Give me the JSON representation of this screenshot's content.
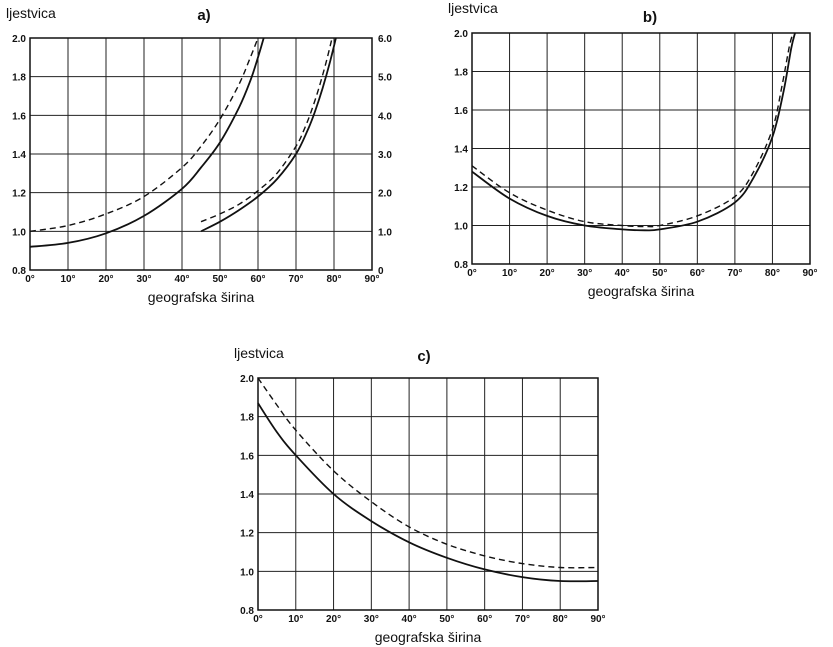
{
  "chart_data": [
    {
      "type": "line",
      "panel_label": "a)",
      "ylabel": "ljestvica",
      "xlabel": "geografska širina",
      "xlim": [
        0,
        90
      ],
      "ylim": [
        0.8,
        2.0
      ],
      "ylim_right": [
        0,
        6.0
      ],
      "grid": true,
      "x_ticks": [
        "0°",
        "10°",
        "20°",
        "30°",
        "40°",
        "50°",
        "60°",
        "70°",
        "80°",
        "90°"
      ],
      "y_ticks": [
        "0.8",
        "1.0",
        "1.2",
        "1.4",
        "1.6",
        "1.8",
        "2.0"
      ],
      "y_ticks_right": [
        "0",
        "1.0",
        "2.0",
        "3.0",
        "4.0",
        "5.0",
        "6.0"
      ],
      "series": [
        {
          "style": "solid",
          "axis": "left",
          "x": [
            0,
            10,
            20,
            30,
            40,
            45,
            50,
            55,
            58,
            60,
            61.5
          ],
          "y": [
            0.92,
            0.94,
            0.99,
            1.08,
            1.22,
            1.33,
            1.46,
            1.64,
            1.78,
            1.9,
            2.0
          ]
        },
        {
          "style": "dashed",
          "axis": "left",
          "x": [
            0,
            10,
            20,
            30,
            40,
            45,
            50,
            55,
            58,
            60
          ],
          "y": [
            1.0,
            1.03,
            1.09,
            1.18,
            1.33,
            1.44,
            1.58,
            1.76,
            1.9,
            2.0
          ]
        },
        {
          "style": "solid",
          "axis": "right",
          "x": [
            45,
            50,
            55,
            60,
            65,
            70,
            73,
            75,
            77,
            79,
            80.5
          ],
          "y": [
            1.0,
            1.25,
            1.55,
            1.9,
            2.35,
            3.0,
            3.6,
            4.1,
            4.7,
            5.4,
            6.0
          ]
        },
        {
          "style": "dashed",
          "axis": "right",
          "x": [
            45,
            50,
            55,
            60,
            65,
            70,
            72,
            74,
            76,
            78,
            79.5
          ],
          "y": [
            1.25,
            1.45,
            1.7,
            2.05,
            2.5,
            3.2,
            3.6,
            4.1,
            4.7,
            5.4,
            6.0
          ]
        }
      ]
    },
    {
      "type": "line",
      "panel_label": "b)",
      "ylabel": "ljestvica",
      "xlabel": "geografska širina",
      "xlim": [
        0,
        90
      ],
      "ylim": [
        0.8,
        2.0
      ],
      "grid": true,
      "x_ticks": [
        "0°",
        "10°",
        "20°",
        "30°",
        "40°",
        "50°",
        "60°",
        "70°",
        "80°",
        "90°"
      ],
      "y_ticks": [
        "0.8",
        "1.0",
        "1.2",
        "1.4",
        "1.6",
        "1.8",
        "2.0"
      ],
      "series": [
        {
          "style": "solid",
          "x": [
            0,
            10,
            20,
            30,
            40,
            46,
            50,
            60,
            70,
            75,
            80,
            83,
            85,
            86
          ],
          "y": [
            1.28,
            1.14,
            1.05,
            1.0,
            0.98,
            0.975,
            0.98,
            1.02,
            1.12,
            1.25,
            1.46,
            1.7,
            1.92,
            2.0
          ]
        },
        {
          "style": "dashed",
          "x": [
            0,
            10,
            20,
            30,
            40,
            46,
            50,
            60,
            70,
            75,
            80,
            82.5,
            84.5,
            85.5
          ],
          "y": [
            1.31,
            1.17,
            1.08,
            1.02,
            1.0,
            0.995,
            1.0,
            1.05,
            1.15,
            1.28,
            1.5,
            1.72,
            1.93,
            2.0
          ]
        }
      ]
    },
    {
      "type": "line",
      "panel_label": "c)",
      "ylabel": "ljestvica",
      "xlabel": "geografska širina",
      "xlim": [
        0,
        90
      ],
      "ylim": [
        0.8,
        2.0
      ],
      "grid": true,
      "x_ticks": [
        "0°",
        "10°",
        "20°",
        "30°",
        "40°",
        "50°",
        "60°",
        "70°",
        "80°",
        "90°"
      ],
      "y_ticks": [
        "0.8",
        "1.0",
        "1.2",
        "1.4",
        "1.6",
        "1.8",
        "2.0"
      ],
      "series": [
        {
          "style": "solid",
          "x": [
            0,
            5,
            10,
            20,
            30,
            40,
            50,
            60,
            70,
            80,
            90
          ],
          "y": [
            1.87,
            1.72,
            1.6,
            1.4,
            1.26,
            1.15,
            1.07,
            1.01,
            0.97,
            0.95,
            0.95
          ]
        },
        {
          "style": "dashed",
          "x": [
            0,
            5,
            10,
            20,
            30,
            40,
            50,
            60,
            70,
            80,
            90
          ],
          "y": [
            2.0,
            1.86,
            1.73,
            1.52,
            1.36,
            1.23,
            1.14,
            1.08,
            1.04,
            1.02,
            1.02
          ]
        }
      ]
    }
  ]
}
